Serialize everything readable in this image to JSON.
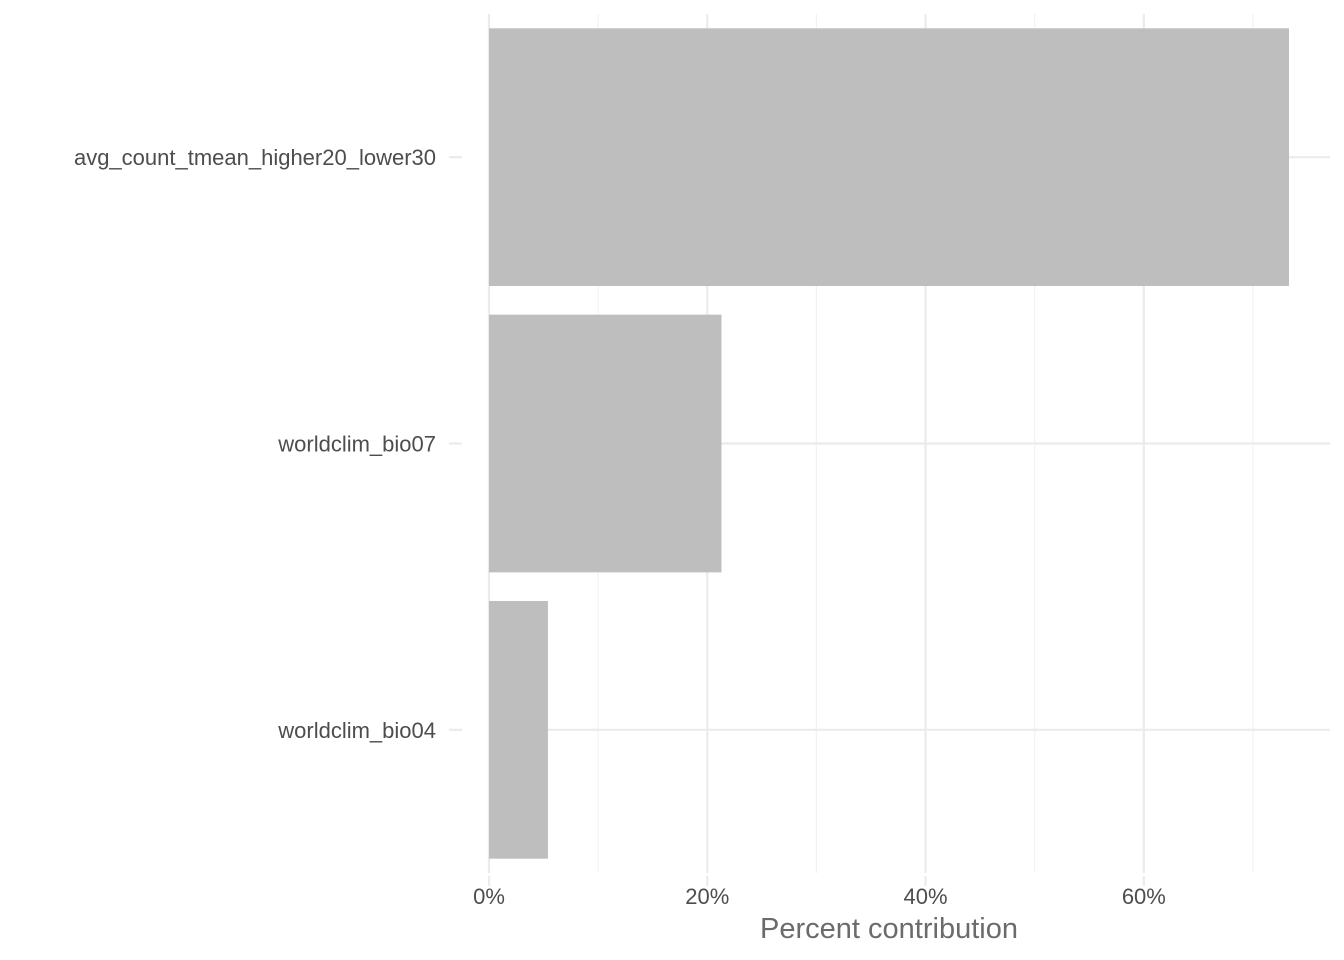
{
  "chart_data": {
    "type": "bar",
    "orientation": "horizontal",
    "categories": [
      "avg_count_tmean_higher20_lower30",
      "worldclim_bio07",
      "worldclim_bio04"
    ],
    "values": [
      73.3,
      21.3,
      5.4
    ],
    "value_unit": "%",
    "xlabel": "Percent contribution",
    "ylabel": "",
    "xlim": [
      0,
      76.5
    ],
    "x_ticks": [
      0,
      20,
      40,
      60
    ],
    "x_tick_labels": [
      "0%",
      "20%",
      "40%",
      "60%"
    ],
    "grid": true,
    "legend": "none",
    "bar_color": "#bebebe"
  }
}
